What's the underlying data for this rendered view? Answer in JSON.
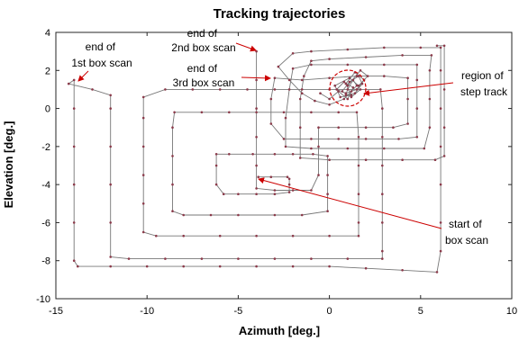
{
  "chart_data": {
    "type": "line",
    "title": "Tracking trajectories",
    "xlabel": "Azimuth [deg.]",
    "ylabel": "Elevation [deg.]",
    "xlim": [
      -15,
      10
    ],
    "ylim": [
      -10,
      4
    ],
    "x_ticks": [
      -15,
      -10,
      -5,
      0,
      5,
      10
    ],
    "y_ticks": [
      -10,
      -8,
      -6,
      -4,
      -2,
      0,
      2,
      4
    ],
    "x_tick_labels": [
      "-15",
      "-10",
      "-5",
      "0",
      "5",
      "10"
    ],
    "y_tick_labels": [
      "-10",
      "-8",
      "-6",
      "-4",
      "-2",
      "0",
      "2",
      "4"
    ],
    "grid": false,
    "legend": "none",
    "colors": {
      "line": "#777777",
      "marker": "#8b3a4a",
      "annotation": "#cc0000"
    },
    "series": [
      {
        "points": [
          [
            -3.9,
            -3.6
          ],
          [
            -3.2,
            -3.6
          ],
          [
            -2.3,
            -3.6
          ],
          [
            -2.2,
            -3.7
          ],
          [
            -2.2,
            -4.0
          ],
          [
            -2.2,
            -4.4
          ],
          [
            -3.0,
            -4.5
          ],
          [
            -4.0,
            -4.5
          ],
          [
            -5.0,
            -4.5
          ],
          [
            -5.8,
            -4.5
          ],
          [
            -6.2,
            -4.0
          ],
          [
            -6.2,
            -3.0
          ],
          [
            -6.2,
            -2.4
          ],
          [
            -5.5,
            -2.4
          ],
          [
            -4.2,
            -2.4
          ],
          [
            -3.0,
            -2.4
          ],
          [
            -2.0,
            -2.4
          ],
          [
            -0.9,
            -2.4
          ],
          [
            -0.1,
            -2.5
          ],
          [
            -0.1,
            -3.5
          ],
          [
            -0.1,
            -4.5
          ],
          [
            -0.1,
            -5.4
          ],
          [
            -1.5,
            -5.6
          ],
          [
            -3.0,
            -5.6
          ],
          [
            -5.0,
            -5.6
          ],
          [
            -6.5,
            -5.6
          ],
          [
            -8.0,
            -5.6
          ],
          [
            -8.6,
            -5.4
          ],
          [
            -8.6,
            -4.0
          ],
          [
            -8.6,
            -2.5
          ],
          [
            -8.6,
            -1.0
          ],
          [
            -8.5,
            -0.2
          ],
          [
            -7.0,
            -0.2
          ],
          [
            -5.5,
            -0.2
          ],
          [
            -4.0,
            -0.2
          ],
          [
            -2.5,
            -0.2
          ],
          [
            -1.0,
            -0.2
          ],
          [
            0.5,
            -0.2
          ],
          [
            1.5,
            -0.2
          ],
          [
            1.6,
            -1.5
          ],
          [
            1.6,
            -3.0
          ],
          [
            1.6,
            -4.5
          ],
          [
            1.6,
            -6.0
          ],
          [
            1.6,
            -6.7
          ],
          [
            0.0,
            -6.7
          ],
          [
            -2.0,
            -6.7
          ],
          [
            -4.0,
            -6.7
          ],
          [
            -6.0,
            -6.7
          ],
          [
            -8.0,
            -6.7
          ],
          [
            -9.5,
            -6.7
          ],
          [
            -10.2,
            -6.5
          ],
          [
            -10.2,
            -5.0
          ],
          [
            -10.2,
            -3.5
          ],
          [
            -10.2,
            -2.0
          ],
          [
            -10.2,
            -0.5
          ],
          [
            -10.2,
            0.6
          ],
          [
            -9.0,
            1.0
          ],
          [
            -7.5,
            1.0
          ],
          [
            -6.0,
            1.0
          ],
          [
            -4.5,
            1.0
          ],
          [
            -3.0,
            1.0
          ],
          [
            -1.5,
            1.0
          ],
          [
            0.0,
            1.0
          ],
          [
            1.5,
            1.0
          ],
          [
            2.8,
            1.0
          ],
          [
            2.9,
            0.0
          ],
          [
            2.9,
            -1.5
          ],
          [
            2.9,
            -3.0
          ],
          [
            2.9,
            -4.5
          ],
          [
            2.9,
            -6.0
          ],
          [
            2.9,
            -7.5
          ],
          [
            2.9,
            -7.9
          ],
          [
            1.0,
            -7.9
          ],
          [
            -1.0,
            -7.9
          ],
          [
            -3.0,
            -7.9
          ],
          [
            -5.0,
            -7.9
          ],
          [
            -7.0,
            -7.9
          ],
          [
            -9.0,
            -7.9
          ],
          [
            -11.0,
            -7.9
          ],
          [
            -12.0,
            -7.8
          ],
          [
            -12.0,
            -6.0
          ],
          [
            -12.0,
            -4.0
          ],
          [
            -12.0,
            -2.0
          ],
          [
            -12.0,
            0.0
          ],
          [
            -12.0,
            0.7
          ],
          [
            -13.0,
            1.0
          ],
          [
            -14.3,
            1.3
          ],
          [
            -14.0,
            1.5
          ],
          [
            -14.0,
            0.0
          ],
          [
            -14.0,
            -2.0
          ],
          [
            -14.0,
            -4.0
          ],
          [
            -14.0,
            -6.0
          ],
          [
            -14.0,
            -8.0
          ],
          [
            -13.8,
            -8.3
          ],
          [
            -12.0,
            -8.3
          ],
          [
            -10.0,
            -8.3
          ],
          [
            -8.0,
            -8.3
          ],
          [
            -6.0,
            -8.3
          ],
          [
            -4.0,
            -8.3
          ],
          [
            -2.0,
            -8.3
          ],
          [
            0.0,
            -8.3
          ],
          [
            2.0,
            -8.4
          ],
          [
            4.0,
            -8.5
          ],
          [
            5.9,
            -8.6
          ],
          [
            6.1,
            -7.5
          ],
          [
            6.1,
            -6.0
          ],
          [
            6.1,
            -4.0
          ],
          [
            6.1,
            -2.0
          ],
          [
            6.1,
            0.0
          ],
          [
            6.1,
            2.0
          ],
          [
            6.1,
            3.2
          ],
          [
            5.0,
            3.2
          ],
          [
            3.0,
            3.2
          ],
          [
            1.0,
            3.1
          ],
          [
            -1.0,
            3.0
          ],
          [
            -2.0,
            2.9
          ],
          [
            -2.8,
            2.2
          ],
          [
            -2.2,
            1.5
          ],
          [
            -1.5,
            0.8
          ],
          [
            -0.8,
            0.4
          ],
          [
            0.0,
            0.2
          ],
          [
            0.8,
            0.5
          ],
          [
            1.2,
            0.9
          ],
          [
            1.5,
            1.2
          ],
          [
            1.3,
            1.5
          ],
          [
            1.0,
            1.0
          ],
          [
            0.9,
            0.7
          ],
          [
            1.4,
            0.8
          ],
          [
            1.8,
            1.3
          ],
          [
            1.6,
            1.7
          ],
          [
            1.1,
            1.4
          ],
          [
            0.7,
            0.9
          ],
          [
            1.2,
            0.6
          ],
          [
            1.7,
            1.0
          ]
        ]
      },
      {
        "points": [
          [
            -4.0,
            3.0
          ],
          [
            -4.0,
            1.5
          ],
          [
            -4.0,
            0.0
          ],
          [
            -4.0,
            -1.5
          ],
          [
            -4.0,
            -3.0
          ],
          [
            -4.0,
            -4.2
          ],
          [
            -3.0,
            -4.3
          ],
          [
            -2.0,
            -4.3
          ],
          [
            -1.0,
            -4.3
          ],
          [
            -0.6,
            -3.5
          ],
          [
            -0.6,
            -2.0
          ],
          [
            -0.6,
            -1.0
          ],
          [
            0.5,
            -1.0
          ],
          [
            2.0,
            -1.0
          ],
          [
            3.5,
            -1.0
          ],
          [
            4.3,
            -0.8
          ],
          [
            4.3,
            0.5
          ],
          [
            4.3,
            1.6
          ],
          [
            3.0,
            1.7
          ],
          [
            1.5,
            1.7
          ],
          [
            0.0,
            1.6
          ],
          [
            -1.5,
            1.5
          ],
          [
            -3.0,
            1.6
          ],
          [
            -3.2,
            0.5
          ],
          [
            -3.2,
            -0.8
          ],
          [
            -2.5,
            -1.6
          ],
          [
            -1.0,
            -1.6
          ],
          [
            0.5,
            -1.6
          ],
          [
            2.0,
            -1.6
          ],
          [
            3.8,
            -1.6
          ],
          [
            4.8,
            -1.5
          ],
          [
            4.8,
            0.0
          ],
          [
            4.8,
            1.5
          ],
          [
            4.8,
            2.3
          ],
          [
            3.0,
            2.3
          ],
          [
            1.0,
            2.3
          ],
          [
            -1.0,
            2.3
          ],
          [
            -2.0,
            2.1
          ],
          [
            -2.2,
            1.0
          ],
          [
            -2.4,
            -0.5
          ],
          [
            -2.4,
            -2.0
          ],
          [
            -1.0,
            -2.1
          ],
          [
            1.0,
            -2.1
          ],
          [
            3.0,
            -2.1
          ],
          [
            5.2,
            -2.1
          ],
          [
            5.5,
            -1.0
          ],
          [
            5.5,
            0.5
          ],
          [
            5.5,
            2.0
          ],
          [
            5.6,
            2.8
          ],
          [
            4.0,
            2.8
          ],
          [
            2.0,
            2.7
          ],
          [
            0.0,
            2.6
          ],
          [
            -1.0,
            2.5
          ],
          [
            -1.4,
            1.7
          ],
          [
            -1.6,
            0.5
          ],
          [
            -1.6,
            -1.0
          ],
          [
            -1.6,
            -2.6
          ],
          [
            0.0,
            -2.7
          ],
          [
            2.0,
            -2.7
          ],
          [
            4.0,
            -2.7
          ],
          [
            5.8,
            -2.7
          ],
          [
            6.3,
            -2.5
          ],
          [
            6.3,
            -1.0
          ],
          [
            6.3,
            1.0
          ],
          [
            6.3,
            3.3
          ],
          [
            5.9,
            3.3
          ]
        ]
      },
      {
        "points": [
          [
            -0.5,
            0.8
          ],
          [
            0.0,
            0.5
          ],
          [
            0.5,
            0.9
          ],
          [
            1.0,
            0.5
          ],
          [
            1.3,
            1.1
          ],
          [
            0.8,
            1.4
          ],
          [
            0.4,
            1.0
          ],
          [
            0.9,
            0.8
          ],
          [
            1.5,
            1.0
          ],
          [
            1.9,
            1.5
          ],
          [
            1.4,
            1.9
          ],
          [
            0.9,
            1.3
          ],
          [
            1.2,
            0.7
          ],
          [
            0.6,
            0.6
          ],
          [
            0.3,
            1.2
          ],
          [
            1.1,
            1.6
          ],
          [
            1.6,
            1.2
          ],
          [
            2.1,
            1.7
          ],
          [
            1.7,
            2.0
          ],
          [
            1.0,
            1.2
          ]
        ]
      }
    ],
    "annotations": [
      {
        "text_lines": [
          "end of",
          "1st box scan"
        ]
      },
      {
        "text_lines": [
          "end of",
          "2nd box scan"
        ]
      },
      {
        "text_lines": [
          "end of",
          "3rd box scan"
        ]
      },
      {
        "text_lines": [
          "region of",
          "step track"
        ]
      },
      {
        "text_lines": [
          "start of",
          "box scan"
        ]
      }
    ]
  }
}
